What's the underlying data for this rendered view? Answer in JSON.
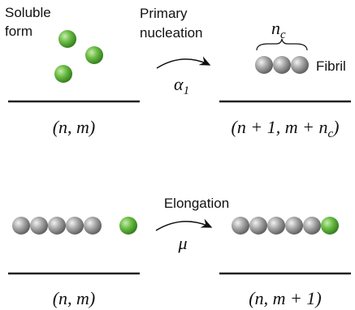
{
  "soluble": {
    "lines": [
      "Soluble",
      "form"
    ]
  },
  "primary": {
    "lines": [
      "Primary",
      "nucleation"
    ]
  },
  "rate1": {
    "symbol": "α",
    "sub": "1"
  },
  "nucleus": {
    "symbol": "n",
    "sub": "c"
  },
  "fibril": "Fibril",
  "state_before_1": "(n, m)",
  "state_after_1": {
    "text": "(n + 1, m + n",
    "sub": "c",
    "close": ")"
  },
  "elongation": "Elongation",
  "rate2": "μ",
  "state_before_2": "(n, m)",
  "state_after_2": "(n, m + 1)"
}
